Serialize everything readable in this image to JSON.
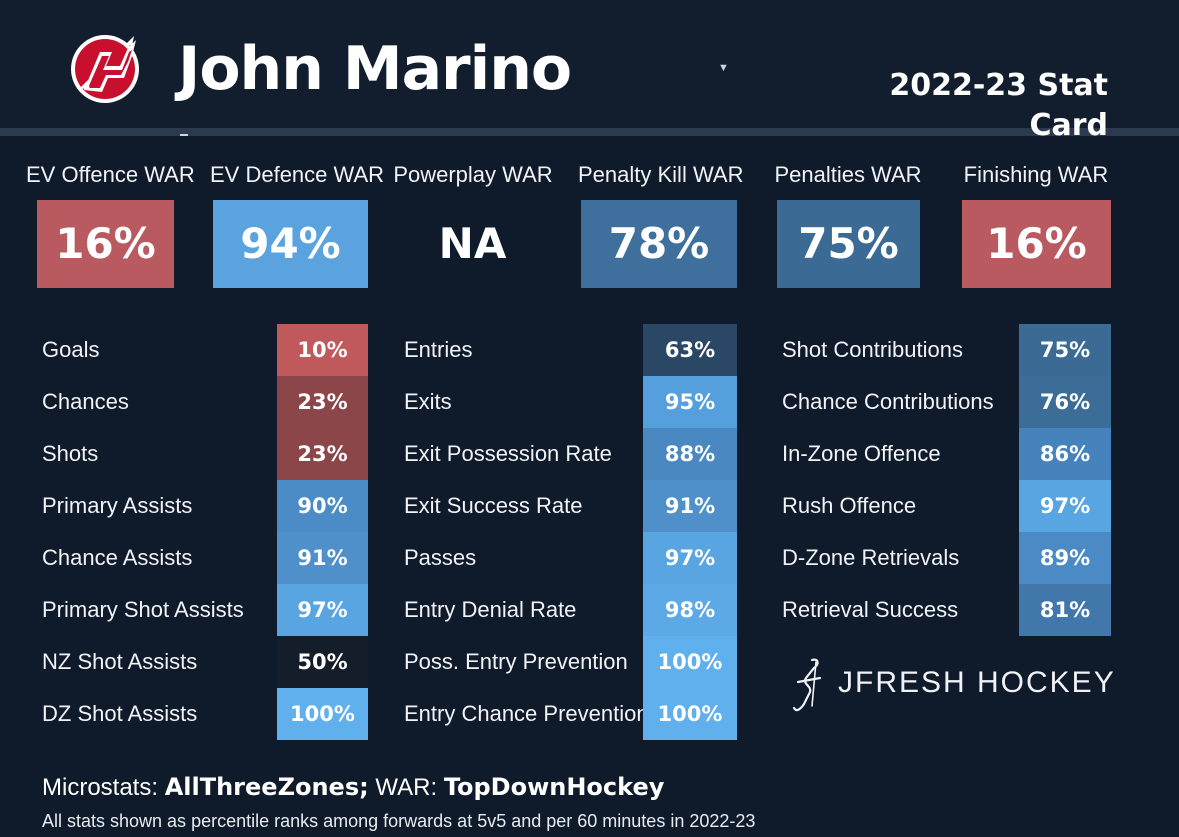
{
  "header": {
    "player_name": "John Marino",
    "card_title": "2022-23 Stat Card",
    "logo_icon": "devils-logo-icon"
  },
  "war": [
    {
      "label": "EV Offence WAR",
      "value": "16%",
      "color": "#b85a5f"
    },
    {
      "label": "EV Defence WAR",
      "value": "94%",
      "color": "#5aa3de"
    },
    {
      "label": "Powerplay WAR",
      "value": "NA",
      "color": ""
    },
    {
      "label": "Penalty Kill WAR",
      "value": "78%",
      "color": "#3f6f9c"
    },
    {
      "label": "Penalties WAR",
      "value": "75%",
      "color": "#3b6a95"
    },
    {
      "label": "Finishing WAR",
      "value": "16%",
      "color": "#b85a5f"
    }
  ],
  "columns": [
    {
      "rows": [
        {
          "label": "Goals",
          "value": "10%",
          "color": "#c0595c"
        },
        {
          "label": "Chances",
          "value": "23%",
          "color": "#8c4549"
        },
        {
          "label": "Shots",
          "value": "23%",
          "color": "#8c4549"
        },
        {
          "label": "Primary Assists",
          "value": "90%",
          "color": "#4c8cc6"
        },
        {
          "label": "Chance Assists",
          "value": "91%",
          "color": "#4f90cb"
        },
        {
          "label": "Primary Shot Assists",
          "value": "97%",
          "color": "#59a5e2"
        },
        {
          "label": "NZ Shot Assists",
          "value": "50%",
          "color": "#141d2a"
        },
        {
          "label": "DZ Shot Assists",
          "value": "100%",
          "color": "#60b0ee"
        }
      ]
    },
    {
      "rows": [
        {
          "label": "Entries",
          "value": "63%",
          "color": "#2a4766"
        },
        {
          "label": "Exits",
          "value": "95%",
          "color": "#55a0dc"
        },
        {
          "label": "Exit Possession Rate",
          "value": "88%",
          "color": "#4a88c2"
        },
        {
          "label": "Exit Success Rate",
          "value": "91%",
          "color": "#4f90cb"
        },
        {
          "label": "Passes",
          "value": "97%",
          "color": "#59a5e2"
        },
        {
          "label": "Entry Denial Rate",
          "value": "98%",
          "color": "#5ca9e6"
        },
        {
          "label": "Poss. Entry Prevention",
          "value": "100%",
          "color": "#60b0ee"
        },
        {
          "label": "Entry Chance Prevention",
          "value": "100%",
          "color": "#60b0ee"
        }
      ]
    },
    {
      "rows": [
        {
          "label": "Shot Contributions",
          "value": "75%",
          "color": "#3b6a95"
        },
        {
          "label": "Chance Contributions",
          "value": "76%",
          "color": "#3c6c98"
        },
        {
          "label": "In-Zone Offence",
          "value": "86%",
          "color": "#4683bc"
        },
        {
          "label": "Rush Offence",
          "value": "97%",
          "color": "#59a5e2"
        },
        {
          "label": "D-Zone Retrievals",
          "value": "89%",
          "color": "#4b8ac4"
        },
        {
          "label": "Retrieval Success",
          "value": "81%",
          "color": "#4177ab"
        }
      ]
    }
  ],
  "brand": {
    "text": "JFRESH HOCKEY",
    "icon": "jfresh-logo-icon"
  },
  "credits": {
    "microstats_label": "Microstats: ",
    "microstats_source": "AllThreeZones;",
    "war_label": " WAR: ",
    "war_source": "TopDownHockey"
  },
  "footnote": "All stats shown as percentile ranks among forwards at 5v5 and per 60 minutes in 2022-23"
}
